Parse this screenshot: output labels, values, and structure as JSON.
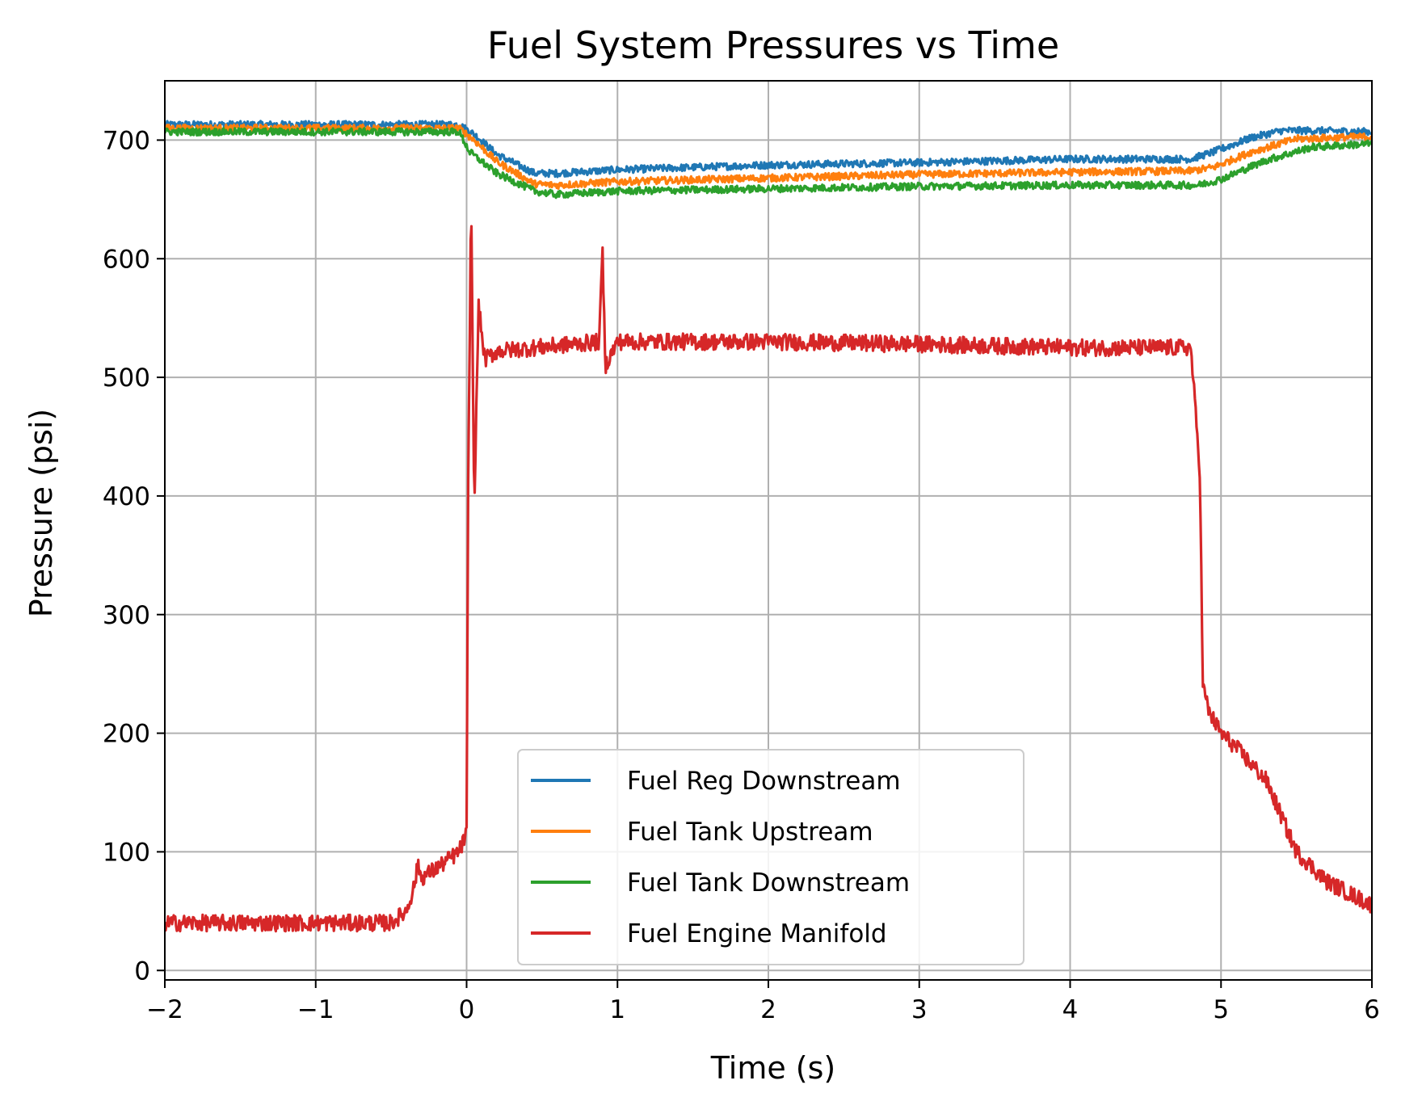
{
  "chart_data": {
    "type": "line",
    "title": "Fuel System Pressures vs Time",
    "xlabel": "Time (s)",
    "ylabel": "Pressure (psi)",
    "xlim": [
      -2,
      6
    ],
    "ylim": [
      -8,
      750
    ],
    "xticks": [
      -2,
      -1,
      0,
      1,
      2,
      3,
      4,
      5,
      6
    ],
    "xtick_labels": [
      "−2",
      "−1",
      "0",
      "1",
      "2",
      "3",
      "4",
      "5",
      "6"
    ],
    "yticks": [
      0,
      100,
      200,
      300,
      400,
      500,
      600,
      700
    ],
    "ytick_labels": [
      "0",
      "100",
      "200",
      "300",
      "400",
      "500",
      "600",
      "700"
    ],
    "grid": true,
    "legend_position": "lower-center",
    "series": [
      {
        "name": "Fuel Reg Downstream",
        "color": "#1f77b4",
        "noise": 3,
        "x": [
          -2,
          -0.05,
          0.05,
          0.2,
          0.45,
          0.6,
          1.0,
          2.0,
          3.0,
          4.0,
          4.8,
          4.95,
          5.2,
          5.4,
          5.6,
          6.0
        ],
        "y": [
          713,
          713,
          705,
          688,
          672,
          672,
          675,
          679,
          681,
          684,
          684,
          690,
          702,
          708,
          708,
          707
        ]
      },
      {
        "name": "Fuel Tank Upstream",
        "color": "#ff7f0e",
        "noise": 3,
        "x": [
          -2,
          -0.05,
          0.05,
          0.2,
          0.45,
          0.6,
          1.0,
          2.0,
          3.0,
          4.0,
          4.8,
          4.95,
          5.2,
          5.5,
          6.0
        ],
        "y": [
          710,
          710,
          700,
          682,
          663,
          662,
          665,
          668,
          671,
          673,
          674,
          677,
          690,
          701,
          703
        ]
      },
      {
        "name": "Fuel Tank Downstream",
        "color": "#2ca02c",
        "noise": 3,
        "x": [
          -2,
          -0.05,
          0.02,
          0.2,
          0.45,
          0.6,
          1.0,
          2.0,
          3.0,
          4.0,
          4.85,
          5.0,
          5.3,
          5.6,
          6.0
        ],
        "y": [
          707,
          707,
          690,
          672,
          657,
          654,
          657,
          659,
          661,
          662,
          662,
          667,
          683,
          694,
          697
        ]
      },
      {
        "name": "Fuel Engine Manifold",
        "color": "#d62728",
        "noise": 7,
        "x": [
          -2,
          -0.5,
          -0.4,
          -0.35,
          -0.32,
          -0.3,
          -0.2,
          -0.05,
          0.0,
          0.01,
          0.03,
          0.05,
          0.08,
          0.12,
          0.2,
          0.88,
          0.9,
          0.92,
          1.0,
          2.0,
          3.0,
          4.0,
          4.8,
          4.86,
          4.88,
          4.92,
          5.0,
          5.1,
          5.3,
          5.5,
          5.7,
          6.0
        ],
        "y": [
          40,
          40,
          50,
          70,
          90,
          78,
          86,
          100,
          115,
          400,
          655,
          390,
          560,
          515,
          522,
          530,
          610,
          510,
          530,
          530,
          528,
          525,
          525,
          420,
          240,
          218,
          200,
          188,
          160,
          100,
          75,
          55
        ]
      }
    ]
  }
}
